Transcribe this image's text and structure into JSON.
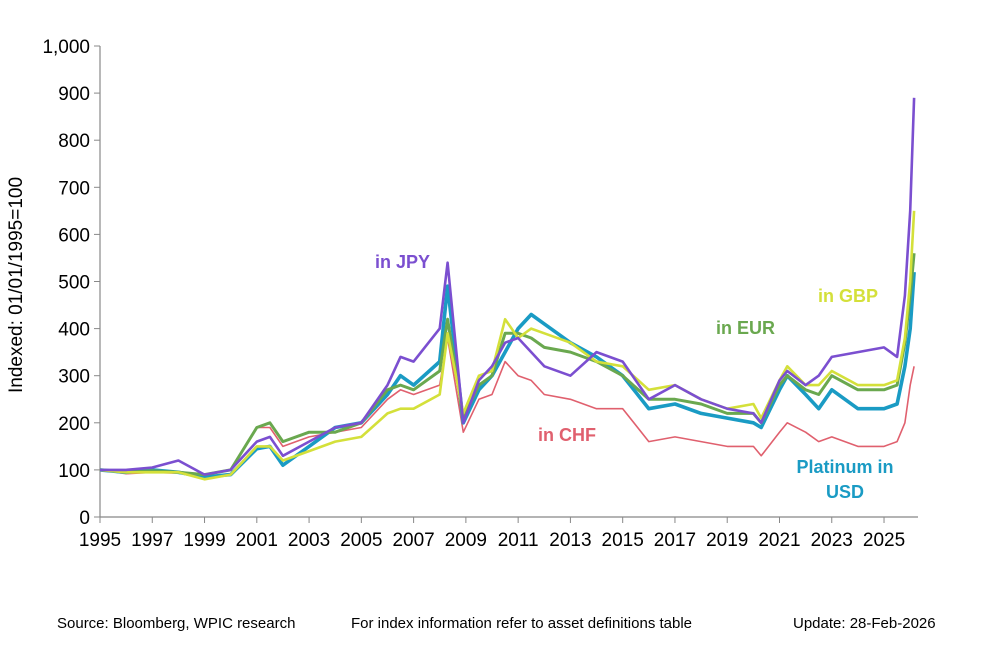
{
  "chart_data": {
    "type": "line",
    "title": "",
    "xlabel": "",
    "ylabel": "Indexed: 01/01/1995=100",
    "xlim": [
      1995,
      2026.3
    ],
    "ylim": [
      0,
      1000
    ],
    "grid": false,
    "legend": "inline labels",
    "x_ticks": [
      "1995",
      "1997",
      "1999",
      "2001",
      "2003",
      "2005",
      "2007",
      "2009",
      "2011",
      "2013",
      "2015",
      "2017",
      "2019",
      "2021",
      "2023",
      "2025"
    ],
    "y_ticks": [
      "0",
      "100",
      "200",
      "300",
      "400",
      "500",
      "600",
      "700",
      "800",
      "900",
      "1,000"
    ],
    "x": [
      1995,
      1996,
      1997,
      1998,
      1999,
      2000,
      2001,
      2001.5,
      2002,
      2003,
      2004,
      2005,
      2006,
      2006.5,
      2007,
      2008,
      2008.3,
      2008.9,
      2009.5,
      2010,
      2010.5,
      2011,
      2011.5,
      2012,
      2013,
      2014,
      2015,
      2016,
      2017,
      2018,
      2019,
      2020,
      2020.3,
      2021,
      2021.3,
      2022,
      2022.5,
      2023,
      2024,
      2025,
      2025.5,
      2025.8,
      2026,
      2026.15
    ],
    "series": [
      {
        "name": "in CHF",
        "color": "#e0606e",
        "values": [
          100,
          92,
          95,
          93,
          90,
          100,
          190,
          190,
          150,
          170,
          180,
          190,
          250,
          270,
          260,
          280,
          380,
          180,
          250,
          260,
          330,
          300,
          290,
          260,
          250,
          230,
          230,
          160,
          170,
          160,
          150,
          150,
          130,
          180,
          200,
          180,
          160,
          170,
          150,
          150,
          160,
          200,
          280,
          320
        ]
      },
      {
        "name": "Platinum in USD",
        "color": "#1a9bc4",
        "values": [
          100,
          95,
          100,
          95,
          85,
          90,
          145,
          150,
          110,
          150,
          190,
          200,
          260,
          300,
          280,
          330,
          490,
          200,
          270,
          300,
          350,
          400,
          430,
          410,
          370,
          340,
          300,
          230,
          240,
          220,
          210,
          200,
          190,
          270,
          300,
          260,
          230,
          270,
          230,
          230,
          240,
          320,
          400,
          520
        ]
      },
      {
        "name": "in EUR",
        "color": "#6aa84f",
        "values": [
          100,
          95,
          98,
          95,
          90,
          100,
          190,
          200,
          160,
          180,
          180,
          200,
          270,
          280,
          270,
          310,
          420,
          210,
          280,
          300,
          390,
          390,
          380,
          360,
          350,
          330,
          300,
          250,
          250,
          240,
          220,
          220,
          200,
          280,
          300,
          270,
          260,
          300,
          270,
          270,
          280,
          370,
          470,
          560
        ]
      },
      {
        "name": "in GBP",
        "color": "#d4e03a",
        "values": [
          100,
          95,
          95,
          95,
          80,
          90,
          150,
          150,
          120,
          140,
          160,
          170,
          220,
          230,
          230,
          260,
          390,
          220,
          300,
          310,
          420,
          380,
          400,
          390,
          370,
          330,
          320,
          270,
          280,
          250,
          230,
          240,
          210,
          290,
          320,
          280,
          280,
          310,
          280,
          280,
          290,
          380,
          500,
          650
        ]
      },
      {
        "name": "in JPY",
        "color": "#7b4fd0",
        "values": [
          100,
          100,
          105,
          120,
          90,
          100,
          160,
          170,
          130,
          160,
          190,
          200,
          280,
          340,
          330,
          400,
          540,
          200,
          290,
          320,
          370,
          380,
          350,
          320,
          300,
          350,
          330,
          250,
          280,
          250,
          230,
          220,
          200,
          290,
          310,
          280,
          300,
          340,
          350,
          360,
          340,
          470,
          650,
          890
        ]
      }
    ]
  },
  "labels": {
    "jpy": "in JPY",
    "gbp": "in GBP",
    "eur": "in EUR",
    "chf": "in CHF",
    "usd_line1": "Platinum in",
    "usd_line2": "USD"
  },
  "footer": {
    "source": "Source: Bloomberg, WPIC research",
    "note": "For index information refer to asset definitions table",
    "update": "Update: 28-Feb-2026"
  }
}
